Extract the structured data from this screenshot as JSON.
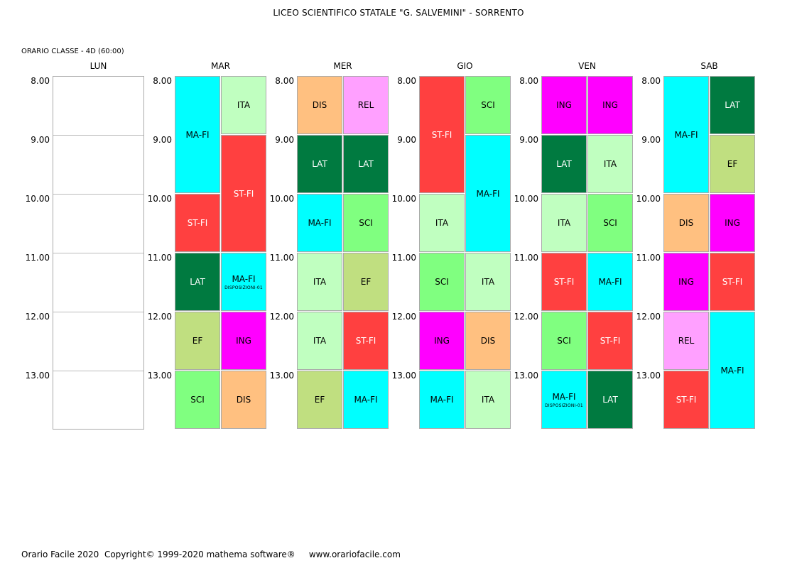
{
  "title": "LICEO SCIENTIFICO STATALE \"G. SALVEMINI\" - SORRENTO",
  "subtitle": "ORARIO CLASSE  -  4D  (60:00)",
  "footer": "Orario Facile 2020  Copyright© 1999-2020 mathema software®     www.orariofacile.com",
  "times": [
    "8.00",
    "9.00",
    "10.00",
    "11.00",
    "12.00",
    "13.00"
  ],
  "colors": {
    "MA-FI": "#00ffff",
    "ITA": "#c0ffc0",
    "ST-FI": "#ff4040",
    "LAT": "#007a40",
    "EF": "#c0df80",
    "ING": "#ff00ff",
    "SCI": "#80ff80",
    "DIS": "#ffc080",
    "REL": "#ffa0ff"
  },
  "days": [
    {
      "name": "LUN",
      "lessons": []
    },
    {
      "name": "MAR",
      "lessons": [
        {
          "subject": "MA-FI",
          "col": 0,
          "start": 0,
          "span": 2
        },
        {
          "subject": "ITA",
          "col": 1,
          "start": 0,
          "span": 1
        },
        {
          "subject": "ST-FI",
          "col": 1,
          "start": 1,
          "span": 2
        },
        {
          "subject": "ST-FI",
          "col": 0,
          "start": 2,
          "span": 1
        },
        {
          "subject": "LAT",
          "col": 0,
          "start": 3,
          "span": 1
        },
        {
          "subject": "MA-FI",
          "col": 1,
          "start": 3,
          "span": 1,
          "note": "DISPOSIZIONI-01"
        },
        {
          "subject": "EF",
          "col": 0,
          "start": 4,
          "span": 1
        },
        {
          "subject": "ING",
          "col": 1,
          "start": 4,
          "span": 1
        },
        {
          "subject": "SCI",
          "col": 0,
          "start": 5,
          "span": 1
        },
        {
          "subject": "DIS",
          "col": 1,
          "start": 5,
          "span": 1
        }
      ]
    },
    {
      "name": "MER",
      "lessons": [
        {
          "subject": "DIS",
          "col": 0,
          "start": 0,
          "span": 1
        },
        {
          "subject": "REL",
          "col": 1,
          "start": 0,
          "span": 1
        },
        {
          "subject": "LAT",
          "col": 0,
          "start": 1,
          "span": 1
        },
        {
          "subject": "LAT",
          "col": 1,
          "start": 1,
          "span": 1
        },
        {
          "subject": "MA-FI",
          "col": 0,
          "start": 2,
          "span": 1
        },
        {
          "subject": "SCI",
          "col": 1,
          "start": 2,
          "span": 1
        },
        {
          "subject": "ITA",
          "col": 0,
          "start": 3,
          "span": 1
        },
        {
          "subject": "EF",
          "col": 1,
          "start": 3,
          "span": 1
        },
        {
          "subject": "ITA",
          "col": 0,
          "start": 4,
          "span": 1
        },
        {
          "subject": "ST-FI",
          "col": 1,
          "start": 4,
          "span": 1
        },
        {
          "subject": "EF",
          "col": 0,
          "start": 5,
          "span": 1
        },
        {
          "subject": "MA-FI",
          "col": 1,
          "start": 5,
          "span": 1
        }
      ]
    },
    {
      "name": "GIO",
      "lessons": [
        {
          "subject": "ST-FI",
          "col": 0,
          "start": 0,
          "span": 2
        },
        {
          "subject": "SCI",
          "col": 1,
          "start": 0,
          "span": 1
        },
        {
          "subject": "MA-FI",
          "col": 1,
          "start": 1,
          "span": 2
        },
        {
          "subject": "ITA",
          "col": 0,
          "start": 2,
          "span": 1
        },
        {
          "subject": "SCI",
          "col": 0,
          "start": 3,
          "span": 1
        },
        {
          "subject": "ITA",
          "col": 1,
          "start": 3,
          "span": 1
        },
        {
          "subject": "ING",
          "col": 0,
          "start": 4,
          "span": 1
        },
        {
          "subject": "DIS",
          "col": 1,
          "start": 4,
          "span": 1
        },
        {
          "subject": "MA-FI",
          "col": 0,
          "start": 5,
          "span": 1
        },
        {
          "subject": "ITA",
          "col": 1,
          "start": 5,
          "span": 1
        }
      ]
    },
    {
      "name": "VEN",
      "lessons": [
        {
          "subject": "ING",
          "col": 0,
          "start": 0,
          "span": 1
        },
        {
          "subject": "ING",
          "col": 1,
          "start": 0,
          "span": 1
        },
        {
          "subject": "LAT",
          "col": 0,
          "start": 1,
          "span": 1
        },
        {
          "subject": "ITA",
          "col": 1,
          "start": 1,
          "span": 1
        },
        {
          "subject": "ITA",
          "col": 0,
          "start": 2,
          "span": 1
        },
        {
          "subject": "SCI",
          "col": 1,
          "start": 2,
          "span": 1
        },
        {
          "subject": "ST-FI",
          "col": 0,
          "start": 3,
          "span": 1
        },
        {
          "subject": "MA-FI",
          "col": 1,
          "start": 3,
          "span": 1
        },
        {
          "subject": "SCI",
          "col": 0,
          "start": 4,
          "span": 1
        },
        {
          "subject": "ST-FI",
          "col": 1,
          "start": 4,
          "span": 1
        },
        {
          "subject": "MA-FI",
          "col": 0,
          "start": 5,
          "span": 1,
          "note": "DISPOSIZIONI-01"
        },
        {
          "subject": "LAT",
          "col": 1,
          "start": 5,
          "span": 1
        }
      ]
    },
    {
      "name": "SAB",
      "lessons": [
        {
          "subject": "MA-FI",
          "col": 0,
          "start": 0,
          "span": 2
        },
        {
          "subject": "LAT",
          "col": 1,
          "start": 0,
          "span": 1
        },
        {
          "subject": "EF",
          "col": 1,
          "start": 1,
          "span": 1
        },
        {
          "subject": "DIS",
          "col": 0,
          "start": 2,
          "span": 1
        },
        {
          "subject": "ING",
          "col": 1,
          "start": 2,
          "span": 1
        },
        {
          "subject": "ING",
          "col": 0,
          "start": 3,
          "span": 1
        },
        {
          "subject": "ST-FI",
          "col": 1,
          "start": 3,
          "span": 1
        },
        {
          "subject": "REL",
          "col": 0,
          "start": 4,
          "span": 1
        },
        {
          "subject": "MA-FI",
          "col": 1,
          "start": 4,
          "span": 2
        },
        {
          "subject": "ST-FI",
          "col": 0,
          "start": 5,
          "span": 1
        }
      ]
    }
  ]
}
